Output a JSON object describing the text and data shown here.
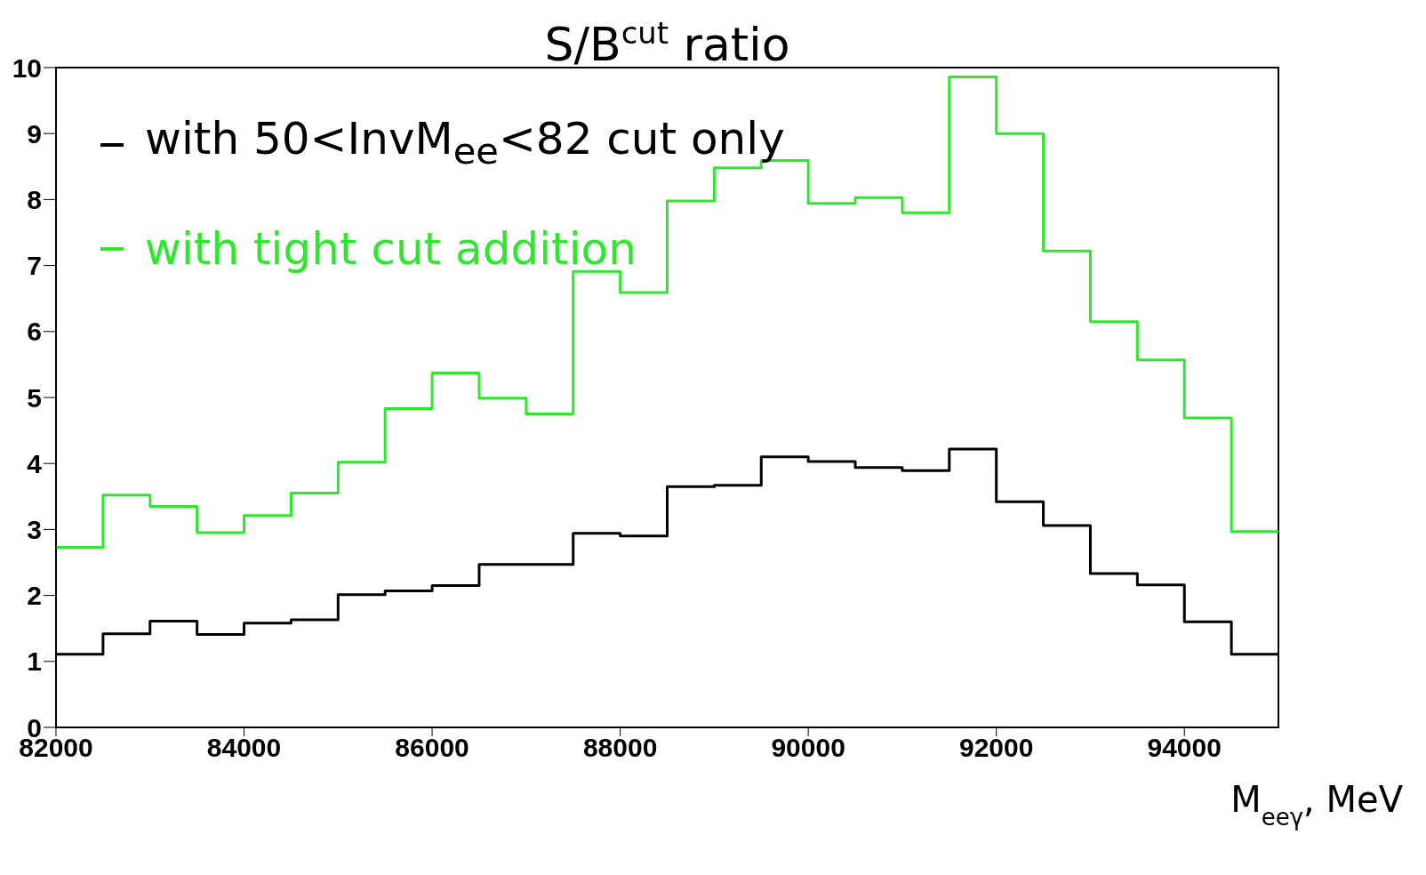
{
  "chart_data": {
    "type": "histogram",
    "title": "S/B$^{cut}$ ratio",
    "xlabel": "M$_{eeγ}$, MeV",
    "bins": [
      82000,
      82500,
      83000,
      83500,
      84000,
      84500,
      85000,
      85500,
      86000,
      86500,
      87000,
      87500,
      88000,
      88500,
      89000,
      89500,
      90000,
      90500,
      91000,
      91500,
      92000,
      92500,
      93000,
      93500,
      94000,
      94500,
      95000
    ],
    "series": [
      {
        "name": "with 50<InvM$_{ee}$<82 cut only",
        "color": "#000000",
        "values": [
          1.11,
          1.42,
          1.61,
          1.41,
          1.58,
          1.63,
          2.01,
          2.07,
          2.15,
          2.47,
          2.47,
          2.94,
          2.9,
          3.65,
          3.67,
          4.1,
          4.03,
          3.94,
          3.89,
          4.22,
          3.42,
          3.06,
          2.33,
          2.16,
          1.6,
          1.11
        ]
      },
      {
        "name": "with tight cut addition",
        "color": "#2ee82e",
        "values": [
          2.73,
          3.52,
          3.35,
          2.95,
          3.21,
          3.55,
          4.02,
          4.83,
          5.37,
          4.99,
          4.75,
          6.91,
          6.59,
          7.98,
          8.48,
          8.59,
          7.94,
          8.03,
          7.8,
          9.86,
          9.0,
          7.22,
          6.15,
          5.57,
          4.69,
          2.97
        ]
      }
    ],
    "xlim": [
      82000,
      95000
    ],
    "xticks": [
      82000,
      84000,
      86000,
      88000,
      90000,
      92000,
      94000
    ],
    "ylim": [
      0,
      10
    ],
    "yticks": [
      0,
      1,
      2,
      3,
      4,
      5,
      6,
      7,
      8,
      9,
      10
    ],
    "legend": "top left",
    "grid": false
  }
}
